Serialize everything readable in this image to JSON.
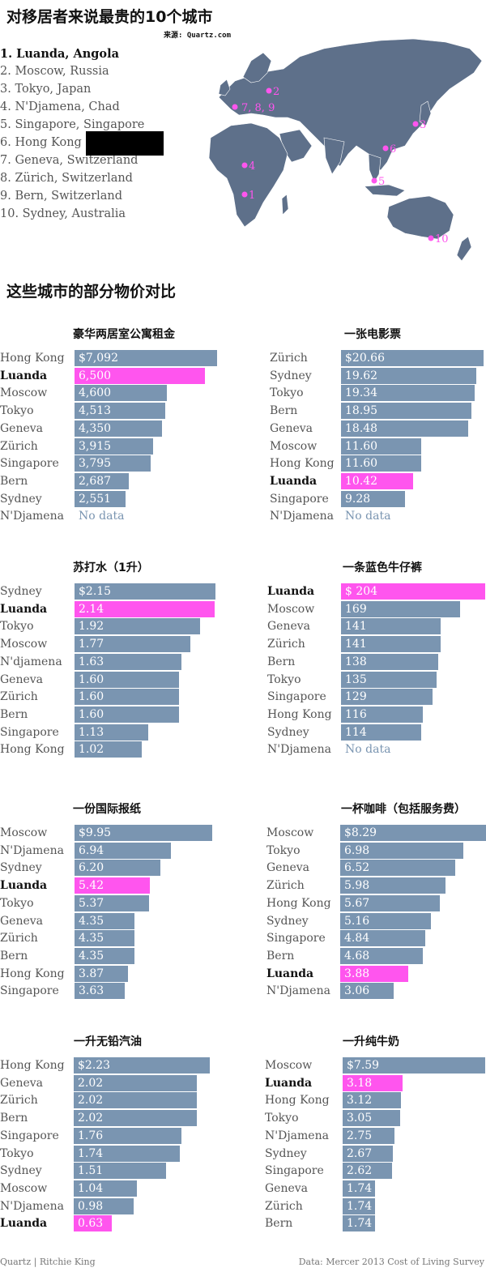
{
  "header": {
    "title": "对移居者来说最贵的10个城市",
    "source": "来源: Quartz.com"
  },
  "top_cities": [
    {
      "label": "1.  Luanda, Angola",
      "marker": "1"
    },
    {
      "label": "2.  Moscow, Russia",
      "marker": "2"
    },
    {
      "label": "3.  Tokyo, Japan",
      "marker": "3"
    },
    {
      "label": "4.  N'Djamena, Chad",
      "marker": "4"
    },
    {
      "label": "5.  Singapore, Singapore",
      "marker": "5"
    },
    {
      "label": "6.  Hong Kong",
      "marker": "6"
    },
    {
      "label": "7.  Geneva, Switzerland",
      "marker": "7"
    },
    {
      "label": "8.  Zürich, Switzerland",
      "marker": "8"
    },
    {
      "label": "9.  Bern, Switzerland",
      "marker": "9"
    },
    {
      "label": "10. Sydney, Australia",
      "marker": "10"
    }
  ],
  "map": {
    "land_color": "#5e708a",
    "marker_color": "#ff55ee",
    "group_marker_label": "7, 8, 9"
  },
  "section_title": "这些城市的部分物价对比",
  "colors": {
    "bar": "#7a95b1",
    "highlight": "#ff55ee"
  },
  "chart_data": [
    {
      "type": "bar",
      "title": "豪华两居室公寓租金",
      "categories": [
        "Hong Kong",
        "Luanda",
        "Moscow",
        "Tokyo",
        "Geneva",
        "Zürich",
        "Singapore",
        "Bern",
        "Sydney",
        "N'Djamena"
      ],
      "values": [
        7092,
        6500,
        4600,
        4513,
        4350,
        3915,
        3795,
        2687,
        2551,
        null
      ],
      "value_labels": [
        "$7,092",
        "6,500",
        "4,600",
        "4,513",
        "4,350",
        "3,915",
        "3,795",
        "2,687",
        "2,551",
        "No data"
      ],
      "highlight": "Luanda",
      "xlim": [
        0,
        7092
      ]
    },
    {
      "type": "bar",
      "title": "一张电影票",
      "categories": [
        "Zürich",
        "Sydney",
        "Tokyo",
        "Bern",
        "Geneva",
        "Moscow",
        "Hong Kong",
        "Luanda",
        "Singapore",
        "N'Djamena"
      ],
      "values": [
        20.66,
        19.62,
        19.34,
        18.95,
        18.48,
        11.6,
        11.6,
        10.42,
        9.28,
        null
      ],
      "value_labels": [
        "$20.66",
        "19.62",
        "19.34",
        "18.95",
        "18.48",
        "11.60",
        "11.60",
        "10.42",
        "9.28",
        "No data"
      ],
      "highlight": "Luanda",
      "xlim": [
        0,
        20.66
      ]
    },
    {
      "type": "bar",
      "title": "苏打水（1升）",
      "categories": [
        "Sydney",
        "Luanda",
        "Tokyo",
        "Moscow",
        "N'djamena",
        "Geneva",
        "Zürich",
        "Bern",
        "Singapore",
        "Hong Kong"
      ],
      "values": [
        2.15,
        2.14,
        1.92,
        1.77,
        1.63,
        1.6,
        1.6,
        1.6,
        1.13,
        1.02
      ],
      "value_labels": [
        "$2.15",
        "2.14",
        "1.92",
        "1.77",
        "1.63",
        "1.60",
        "1.60",
        "1.60",
        "1.13",
        "1.02"
      ],
      "highlight": "Luanda",
      "xlim": [
        0,
        2.15
      ]
    },
    {
      "type": "bar",
      "title": "一条蓝色牛仔裤",
      "categories": [
        "Luanda",
        "Moscow",
        "Geneva",
        "Zürich",
        "Bern",
        "Tokyo",
        "Singapore",
        "Hong Kong",
        "Sydney",
        "N'Djamena"
      ],
      "values": [
        204,
        169,
        141,
        141,
        138,
        135,
        129,
        116,
        114,
        null
      ],
      "value_labels": [
        "$ 204",
        "169",
        "141",
        "141",
        "138",
        "135",
        "129",
        "116",
        "114",
        "No data"
      ],
      "highlight": "Luanda",
      "xlim": [
        0,
        204
      ]
    },
    {
      "type": "bar",
      "title": "一份国际报纸",
      "categories": [
        "Moscow",
        "N'Djamena",
        "Sydney",
        "Luanda",
        "Tokyo",
        "Geneva",
        "Zürich",
        "Bern",
        "Hong Kong",
        "Singapore"
      ],
      "values": [
        9.95,
        6.94,
        6.2,
        5.42,
        5.37,
        4.35,
        4.35,
        4.35,
        3.87,
        3.63
      ],
      "value_labels": [
        "$9.95",
        "6.94",
        "6.20",
        "5.42",
        "5.37",
        "4.35",
        "4.35",
        "4.35",
        "3.87",
        "3.63"
      ],
      "highlight": "Luanda",
      "xlim": [
        0,
        9.95
      ]
    },
    {
      "type": "bar",
      "title": "一杯咖啡（包括服务费）",
      "categories": [
        "Moscow",
        "Tokyo",
        "Geneva",
        "Zürich",
        "Hong Kong",
        "Sydney",
        "Singapore",
        "Bern",
        "Luanda",
        "N'Djamena"
      ],
      "values": [
        8.29,
        6.98,
        6.52,
        5.98,
        5.67,
        5.16,
        4.84,
        4.68,
        3.88,
        3.06
      ],
      "value_labels": [
        "$8.29",
        "6.98",
        "6.52",
        "5.98",
        "5.67",
        "5.16",
        "4.84",
        "4.68",
        "3.88",
        "3.06"
      ],
      "highlight": "Luanda",
      "xlim": [
        0,
        8.29
      ]
    },
    {
      "type": "bar",
      "title": "一升无铅汽油",
      "categories": [
        "Hong Kong",
        "Geneva",
        "Zürich",
        "Bern",
        "Singapore",
        "Tokyo",
        "Sydney",
        "Moscow",
        "N'Djamena",
        "Luanda"
      ],
      "values": [
        2.23,
        2.02,
        2.02,
        2.02,
        1.76,
        1.74,
        1.51,
        1.04,
        0.98,
        0.63
      ],
      "value_labels": [
        "$2.23",
        "2.02",
        "2.02",
        "2.02",
        "1.76",
        "1.74",
        "1.51",
        "1.04",
        "0.98",
        "0.63"
      ],
      "highlight": "Luanda",
      "xlim": [
        0,
        2.23
      ]
    },
    {
      "type": "bar",
      "title": "一升纯牛奶",
      "categories": [
        "Moscow",
        "Luanda",
        "Hong Kong",
        "Tokyo",
        "N'Djamena",
        "Sydney",
        "Singapore",
        "Geneva",
        "Zürich",
        "Bern"
      ],
      "values": [
        7.59,
        3.18,
        3.12,
        3.05,
        2.75,
        2.67,
        2.62,
        1.74,
        1.74,
        1.74
      ],
      "value_labels": [
        "$7.59",
        "3.18",
        "3.12",
        "3.05",
        "2.75",
        "2.67",
        "2.62",
        "1.74",
        "1.74",
        "1.74"
      ],
      "highlight": "Luanda",
      "xlim": [
        0,
        7.59
      ]
    }
  ],
  "footer": {
    "credit": "Quartz | Ritchie King",
    "data_source": "Data: Mercer 2013 Cost of Living Survey"
  }
}
